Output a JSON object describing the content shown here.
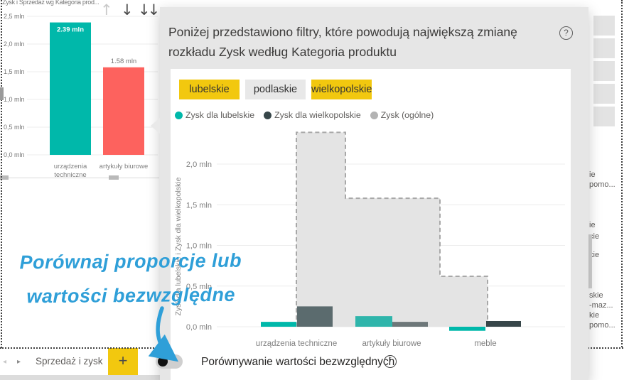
{
  "left_visual": {
    "title": "Zysk i Sprzedaż wg Kategoria prod...",
    "toolbar": {
      "up_icon": "↑",
      "down_icon": "↓",
      "expand_icon": "↓↓"
    }
  },
  "dialog": {
    "title": "Poniżej przedstawiono filtry, które powodują największą zmianę rozkładu Zysk według Kategoria produktu",
    "help_icon": "?",
    "chips": [
      {
        "label": "lubelskie",
        "selected": true
      },
      {
        "label": "podlaskie",
        "selected": false
      },
      {
        "label": "wielkopolskie",
        "selected": true
      }
    ],
    "legend": [
      {
        "label": "Zysk dla lubelskie",
        "color": "#00b8aa"
      },
      {
        "label": "Zysk dla wielkopolskie",
        "color": "#374649"
      },
      {
        "label": "Zysk (ogólne)",
        "color": "#b3b3b3"
      }
    ],
    "toggle": {
      "label": "Porównywanie wartości bezwzględnych",
      "state": "off",
      "info_icon": "i"
    }
  },
  "annotation": {
    "line1": "Porównaj proporcje lub",
    "line2": "wartości bezwzględne",
    "color": "#2f9fd8"
  },
  "tab_bar": {
    "prev_icon": "◂",
    "next_icon": "▸",
    "tab_label": "Sprzedaż i zysk",
    "add_button": "+"
  },
  "background_right": {
    "fragments": [
      "ie",
      "pomo...",
      "ie",
      "cie",
      "kie",
      "skie",
      "-maz...",
      "kie",
      "pomo..."
    ]
  },
  "colors": {
    "accent_yellow": "#f2c80f",
    "teal": "#00b8aa",
    "red": "#fd625e",
    "dark": "#374649",
    "annotation_blue": "#2f9fd8",
    "dialog_bg": "#e6e6e6"
  },
  "chart_data": [
    {
      "type": "bar",
      "title": "Zysk i Sprzedaż wg Kategoria prod...",
      "categories": [
        "urządzenia techniczne",
        "artykuły biurowe"
      ],
      "values": [
        2.39,
        1.58
      ],
      "value_labels": [
        "2.39 mln",
        "1.58 mln"
      ],
      "label_position": [
        "inside",
        "above"
      ],
      "bar_colors": [
        "#00b8aa",
        "#fd625e"
      ],
      "yticks": [
        "0,0 mln",
        "0,5 mln",
        "1,0 mln",
        "1,5 mln",
        "2,0 mln",
        "2,5 mln"
      ],
      "ylim": [
        0,
        2.5
      ],
      "grid": true,
      "xlabel": "",
      "ylabel": ""
    },
    {
      "type": "combo-bar-step-area",
      "categories": [
        "urządzenia techniczne",
        "artykuły biurowe",
        "meble"
      ],
      "series": [
        {
          "name": "Zysk dla lubelskie",
          "type": "bar",
          "values": [
            0.06,
            0.13,
            -0.05
          ],
          "colors": [
            "#00b8aa",
            "#2fb5ab",
            "#00b8aa"
          ]
        },
        {
          "name": "Zysk dla wielkopolskie",
          "type": "bar",
          "values": [
            0.25,
            0.06,
            0.07
          ],
          "colors": [
            "#5b6b6e",
            "#6d7779",
            "#374649"
          ]
        },
        {
          "name": "Zysk (ogólne)",
          "type": "step-area",
          "values": [
            2.39,
            1.58,
            0.62
          ],
          "fill": "#e4e4e4",
          "dash_color": "#a8a8a8"
        }
      ],
      "yticks": [
        "0,0 mln",
        "0,5 mln",
        "1,0 mln",
        "1,5 mln",
        "2,0 mln"
      ],
      "ylim": [
        0,
        2.45
      ],
      "ylabel": "Zysk dla lubelskie i Zysk dla wielkopolskie",
      "xlabel": "",
      "grid": true,
      "legend_position": "top"
    }
  ]
}
